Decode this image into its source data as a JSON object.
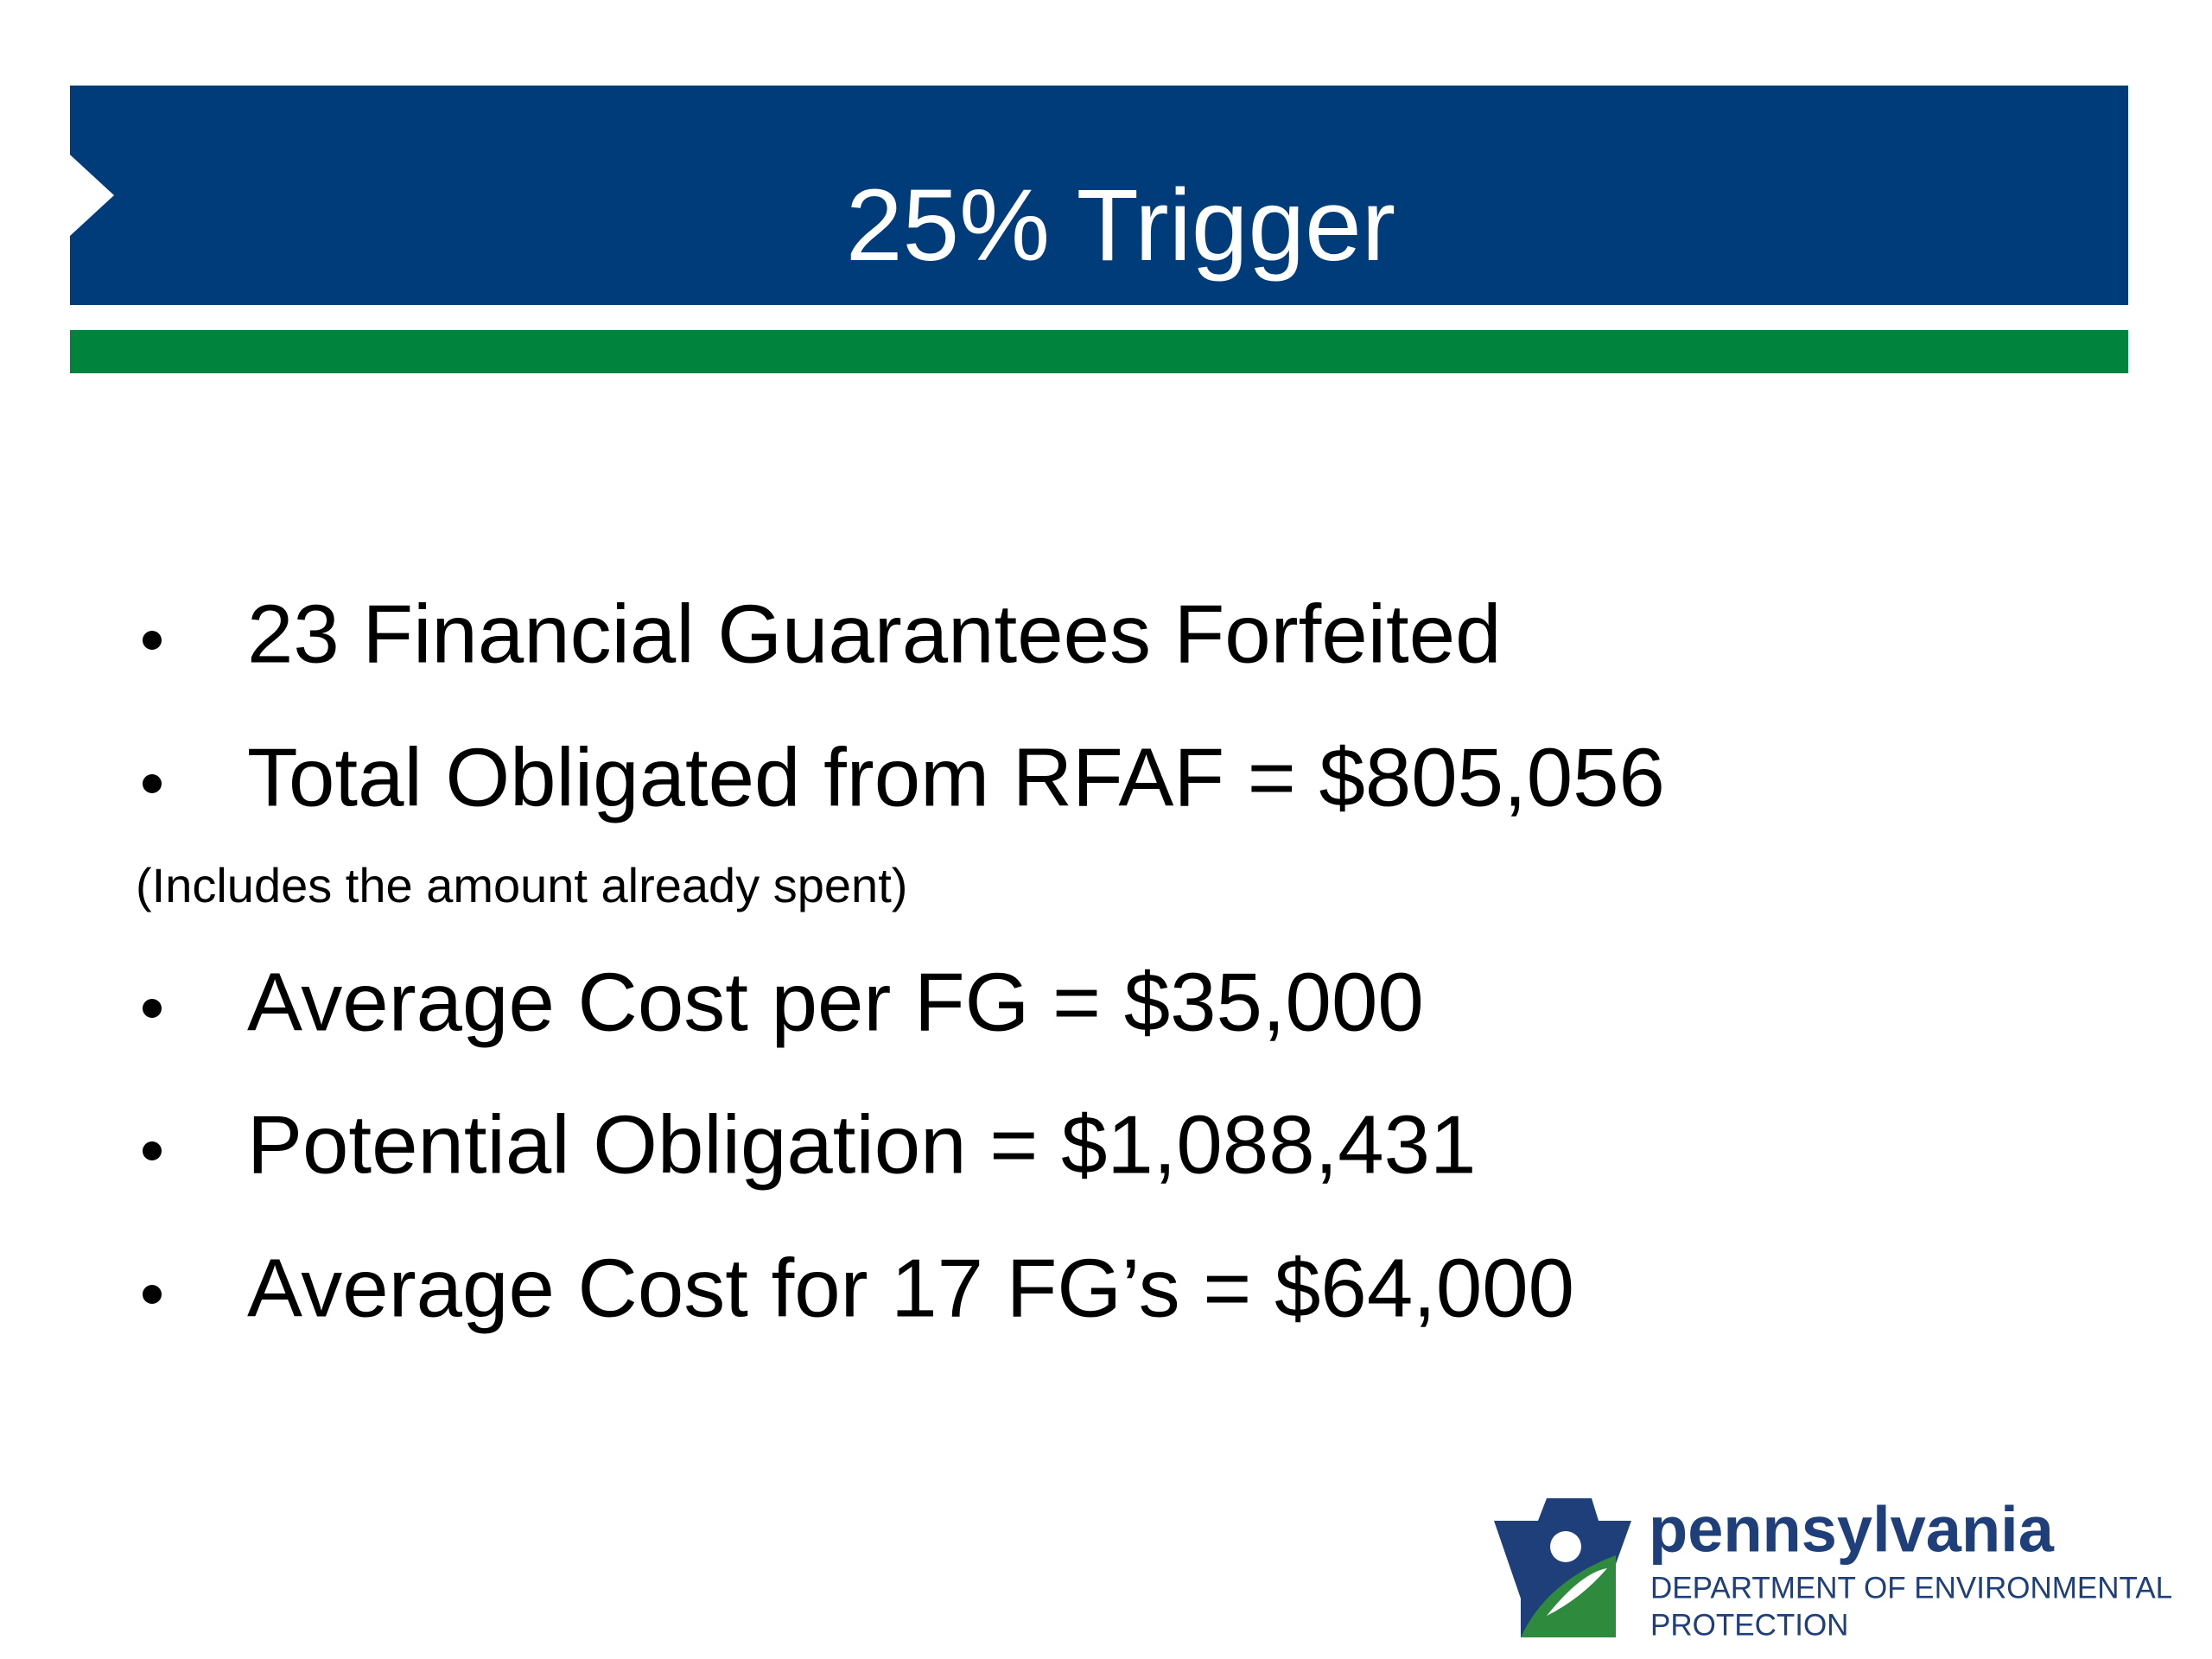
{
  "header": {
    "title": "25% Trigger"
  },
  "bullets": [
    "23 Financial Guarantees Forfeited",
    "Total Obligated from RFAF = $805,056",
    "Average Cost per FG = $35,000",
    "Potential Obligation = $1,088,431",
    "Average Cost for 17 FG’s = $64,000"
  ],
  "note": "(Includes the amount already spent)",
  "logo": {
    "name": "pennsylvania",
    "line1": "DEPARTMENT OF ENVIRONMENTAL",
    "line2": "PROTECTION"
  }
}
